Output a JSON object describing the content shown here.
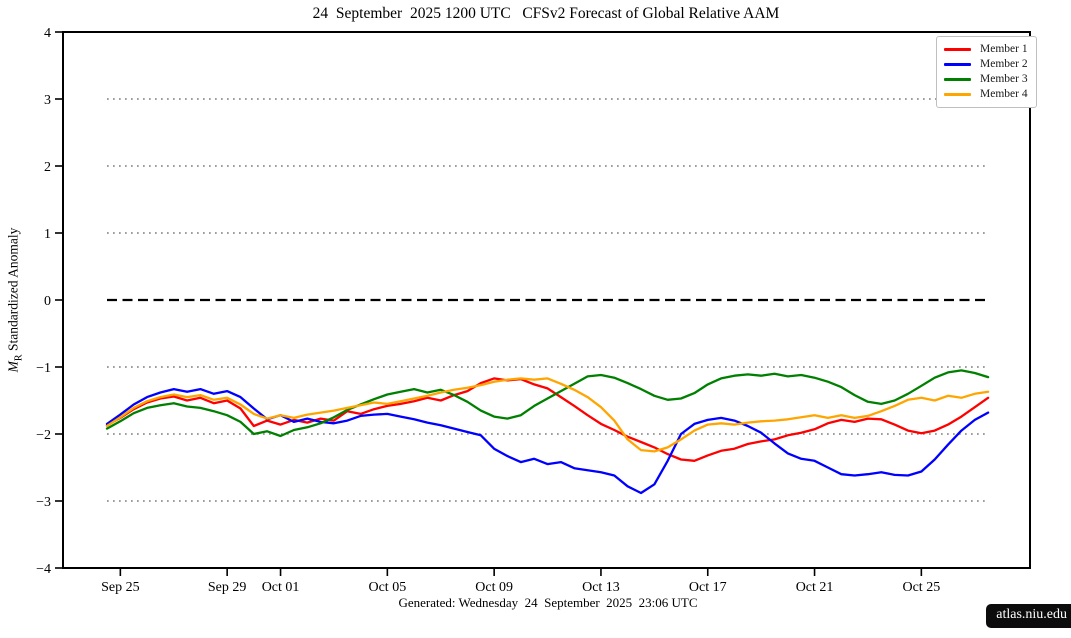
{
  "header": {
    "title": "24  September  2025 1200 UTC   CFSv2 Forecast of Global Relative AAM"
  },
  "footer": {
    "generated": "Generated: Wednesday  24  September  2025  23:06 UTC",
    "badge": "atlas.niu.edu"
  },
  "chart_data": {
    "type": "line",
    "title": "24  September  2025 1200 UTC   CFSv2 Forecast of Global Relative AAM",
    "ylabel_var": "M",
    "ylabel_sub": "R",
    "ylabel_rest": " Standardized Anomaly",
    "ylim": [
      -4,
      4
    ],
    "yticks": [
      {
        "v": 4,
        "label": "4"
      },
      {
        "v": 3,
        "label": "3"
      },
      {
        "v": 2,
        "label": "2"
      },
      {
        "v": 1,
        "label": "1"
      },
      {
        "v": 0,
        "label": "0"
      },
      {
        "v": -1,
        "label": "−1"
      },
      {
        "v": -2,
        "label": "−2"
      },
      {
        "v": -3,
        "label": "−3"
      },
      {
        "v": -4,
        "label": "−4"
      }
    ],
    "xticks": [
      {
        "day": 0.5,
        "label": "Sep 25"
      },
      {
        "day": 4.5,
        "label": "Sep 29"
      },
      {
        "day": 6.5,
        "label": "Oct 01"
      },
      {
        "day": 10.5,
        "label": "Oct 05"
      },
      {
        "day": 14.5,
        "label": "Oct 09"
      },
      {
        "day": 18.5,
        "label": "Oct 13"
      },
      {
        "day": 22.5,
        "label": "Oct 17"
      },
      {
        "day": 26.5,
        "label": "Oct 21"
      },
      {
        "day": 30.5,
        "label": "Oct 25"
      }
    ],
    "x_start_day": 0,
    "x_step_days": 0.5,
    "grid_values": [
      3,
      2,
      1,
      -1,
      -2,
      -3
    ],
    "zero_line_value": 0,
    "grid_color": "#909090",
    "zero_line_color": "#000000",
    "legend_position": "upper right",
    "grid_on": true,
    "series": [
      {
        "name": "Member 1",
        "color": "#ff0000",
        "values": [
          -1.87,
          -1.76,
          -1.63,
          -1.53,
          -1.47,
          -1.44,
          -1.5,
          -1.46,
          -1.54,
          -1.5,
          -1.62,
          -1.88,
          -1.8,
          -1.86,
          -1.79,
          -1.83,
          -1.77,
          -1.8,
          -1.66,
          -1.7,
          -1.63,
          -1.58,
          -1.55,
          -1.51,
          -1.46,
          -1.5,
          -1.42,
          -1.36,
          -1.24,
          -1.17,
          -1.2,
          -1.18,
          -1.26,
          -1.32,
          -1.45,
          -1.58,
          -1.72,
          -1.85,
          -1.94,
          -2.04,
          -2.12,
          -2.2,
          -2.3,
          -2.38,
          -2.4,
          -2.32,
          -2.25,
          -2.22,
          -2.15,
          -2.11,
          -2.08,
          -2.02,
          -1.98,
          -1.93,
          -1.84,
          -1.79,
          -1.82,
          -1.77,
          -1.78,
          -1.86,
          -1.95,
          -1.99,
          -1.95,
          -1.86,
          -1.74,
          -1.6,
          -1.46
        ]
      },
      {
        "name": "Member 2",
        "color": "#0000ff",
        "values": [
          -1.85,
          -1.71,
          -1.56,
          -1.45,
          -1.38,
          -1.33,
          -1.37,
          -1.33,
          -1.4,
          -1.36,
          -1.45,
          -1.62,
          -1.78,
          -1.72,
          -1.82,
          -1.77,
          -1.82,
          -1.84,
          -1.8,
          -1.73,
          -1.71,
          -1.7,
          -1.74,
          -1.78,
          -1.83,
          -1.87,
          -1.92,
          -1.97,
          -2.02,
          -2.22,
          -2.33,
          -2.42,
          -2.37,
          -2.45,
          -2.42,
          -2.51,
          -2.54,
          -2.57,
          -2.62,
          -2.78,
          -2.88,
          -2.75,
          -2.4,
          -2.0,
          -1.85,
          -1.79,
          -1.76,
          -1.8,
          -1.88,
          -1.98,
          -2.14,
          -2.29,
          -2.37,
          -2.4,
          -2.5,
          -2.6,
          -2.62,
          -2.6,
          -2.57,
          -2.61,
          -2.62,
          -2.56,
          -2.38,
          -2.16,
          -1.95,
          -1.79,
          -1.68
        ]
      },
      {
        "name": "Member 3",
        "color": "#008000",
        "values": [
          -1.92,
          -1.81,
          -1.69,
          -1.61,
          -1.57,
          -1.54,
          -1.59,
          -1.61,
          -1.66,
          -1.72,
          -1.82,
          -2.0,
          -1.96,
          -2.03,
          -1.94,
          -1.9,
          -1.84,
          -1.75,
          -1.64,
          -1.56,
          -1.48,
          -1.41,
          -1.37,
          -1.33,
          -1.38,
          -1.34,
          -1.42,
          -1.52,
          -1.65,
          -1.74,
          -1.77,
          -1.72,
          -1.58,
          -1.47,
          -1.36,
          -1.25,
          -1.14,
          -1.12,
          -1.16,
          -1.24,
          -1.33,
          -1.43,
          -1.49,
          -1.47,
          -1.39,
          -1.26,
          -1.17,
          -1.13,
          -1.11,
          -1.13,
          -1.1,
          -1.14,
          -1.12,
          -1.16,
          -1.22,
          -1.3,
          -1.42,
          -1.52,
          -1.55,
          -1.5,
          -1.4,
          -1.28,
          -1.16,
          -1.08,
          -1.05,
          -1.09,
          -1.15
        ]
      },
      {
        "name": "Member 4",
        "color": "#ffa500",
        "values": [
          -1.88,
          -1.75,
          -1.61,
          -1.51,
          -1.45,
          -1.41,
          -1.45,
          -1.42,
          -1.49,
          -1.46,
          -1.56,
          -1.7,
          -1.77,
          -1.72,
          -1.76,
          -1.71,
          -1.68,
          -1.65,
          -1.61,
          -1.57,
          -1.53,
          -1.55,
          -1.51,
          -1.47,
          -1.43,
          -1.38,
          -1.34,
          -1.31,
          -1.27,
          -1.22,
          -1.19,
          -1.17,
          -1.19,
          -1.17,
          -1.25,
          -1.34,
          -1.45,
          -1.6,
          -1.8,
          -2.08,
          -2.24,
          -2.26,
          -2.2,
          -2.08,
          -1.95,
          -1.86,
          -1.84,
          -1.86,
          -1.83,
          -1.81,
          -1.8,
          -1.78,
          -1.75,
          -1.72,
          -1.76,
          -1.72,
          -1.76,
          -1.73,
          -1.66,
          -1.58,
          -1.49,
          -1.46,
          -1.5,
          -1.43,
          -1.46,
          -1.4,
          -1.37
        ]
      }
    ]
  }
}
